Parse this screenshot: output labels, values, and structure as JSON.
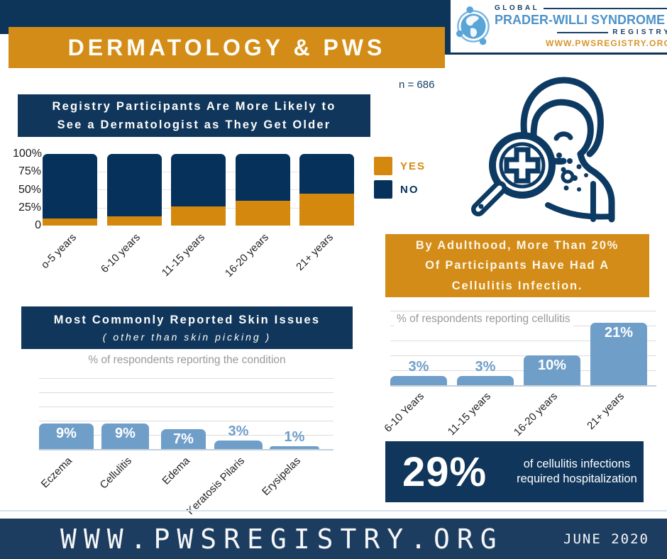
{
  "header": {
    "title": "DERMATOLOGY & PWS",
    "logo": {
      "global_label": "GLOBAL",
      "name": "PRADER-WILLI SYNDROME",
      "registry_label": "REGISTRY",
      "url": "WWW.PWSREGISTRY.ORG"
    },
    "sample_size": "n = 686"
  },
  "chart_data": [
    {
      "id": "dermatologist_visits_by_age",
      "type": "bar",
      "stacked": true,
      "title": "Registry Participants Are More Likely to See a Dermatologist as They Get Older",
      "title_lines": [
        "Registry Participants Are More Likely to",
        "See a Dermatologist as They Get Older"
      ],
      "categories": [
        "o-5 years",
        "6-10 years",
        "11-15 years",
        "16-20 years",
        "21+ years"
      ],
      "series": [
        {
          "name": "YES",
          "color": "#d4880e",
          "values": [
            10,
            13,
            27,
            35,
            45
          ]
        },
        {
          "name": "NO",
          "color": "#06315b",
          "values": [
            90,
            87,
            73,
            65,
            55
          ]
        }
      ],
      "yticks": [
        "100%",
        "75%",
        "50%",
        "25%",
        "0"
      ],
      "ylim": [
        0,
        100
      ],
      "legend_position": "right",
      "grid": true
    },
    {
      "id": "most_common_skin_issues",
      "type": "bar",
      "title": "Most Commonly Reported Skin Issues",
      "subtitle": "( other than skin picking )",
      "axis_note": "% of respondents reporting the condition",
      "categories": [
        "Eczema",
        "Cellulitis",
        "Edema",
        "Keratosis Pilaris",
        "Erysipelas"
      ],
      "values": [
        9,
        9,
        7,
        3,
        1
      ],
      "labels": [
        "9%",
        "9%",
        "7%",
        "3%",
        "1%"
      ],
      "bar_color": "#6f9ec9",
      "ylim": [
        0,
        25
      ],
      "grid": true
    },
    {
      "id": "cellulitis_by_age",
      "type": "bar",
      "title": "% of respondents reporting cellulitis",
      "categories": [
        "6-10 Years",
        "11-15 years",
        "16-20 years",
        "21+ years"
      ],
      "values": [
        3,
        3,
        10,
        21
      ],
      "labels": [
        "3%",
        "3%",
        "10%",
        "21%"
      ],
      "bar_color": "#6f9ec9",
      "ylim": [
        0,
        25
      ],
      "grid": true
    }
  ],
  "callouts": {
    "adulthood_lines": [
      "By Adulthood, More Than 20%",
      "Of Participants Have Had A",
      "Cellulitis Infection."
    ],
    "hospitalization_stat": "29%",
    "hospitalization_lines": [
      "of cellulitis infections",
      "required hospitalization"
    ]
  },
  "footer": {
    "url": "WWW.PWSREGISTRY.ORG",
    "date": "JUNE 2020"
  },
  "colors": {
    "navy": "#10365c",
    "orange": "#d28c17",
    "light_blue": "#6f9ec9"
  }
}
